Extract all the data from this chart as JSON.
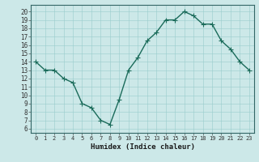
{
  "x": [
    0,
    1,
    2,
    3,
    4,
    5,
    6,
    7,
    8,
    9,
    10,
    11,
    12,
    13,
    14,
    15,
    16,
    17,
    18,
    19,
    20,
    21,
    22,
    23
  ],
  "y": [
    14,
    13,
    13,
    12,
    11.5,
    9,
    8.5,
    7,
    6.5,
    9.5,
    13,
    14.5,
    16.5,
    17.5,
    19,
    19,
    20,
    19.5,
    18.5,
    18.5,
    16.5,
    15.5,
    14,
    13
  ],
  "line_color": "#1a6b5a",
  "marker_color": "#1a6b5a",
  "bg_color": "#cce8e8",
  "grid_color": "#99cccc",
  "xlabel": "Humidex (Indice chaleur)",
  "xlim": [
    -0.5,
    23.5
  ],
  "ylim": [
    5.5,
    20.8
  ],
  "yticks": [
    6,
    7,
    8,
    9,
    10,
    11,
    12,
    13,
    14,
    15,
    16,
    17,
    18,
    19,
    20
  ],
  "xticks": [
    0,
    1,
    2,
    3,
    4,
    5,
    6,
    7,
    8,
    9,
    10,
    11,
    12,
    13,
    14,
    15,
    16,
    17,
    18,
    19,
    20,
    21,
    22,
    23
  ],
  "xtick_labels": [
    "0",
    "1",
    "2",
    "3",
    "4",
    "5",
    "6",
    "7",
    "8",
    "9",
    "10",
    "11",
    "12",
    "13",
    "14",
    "15",
    "16",
    "17",
    "18",
    "19",
    "20",
    "21",
    "22",
    "23"
  ],
  "marker_size": 4,
  "line_width": 1.0
}
